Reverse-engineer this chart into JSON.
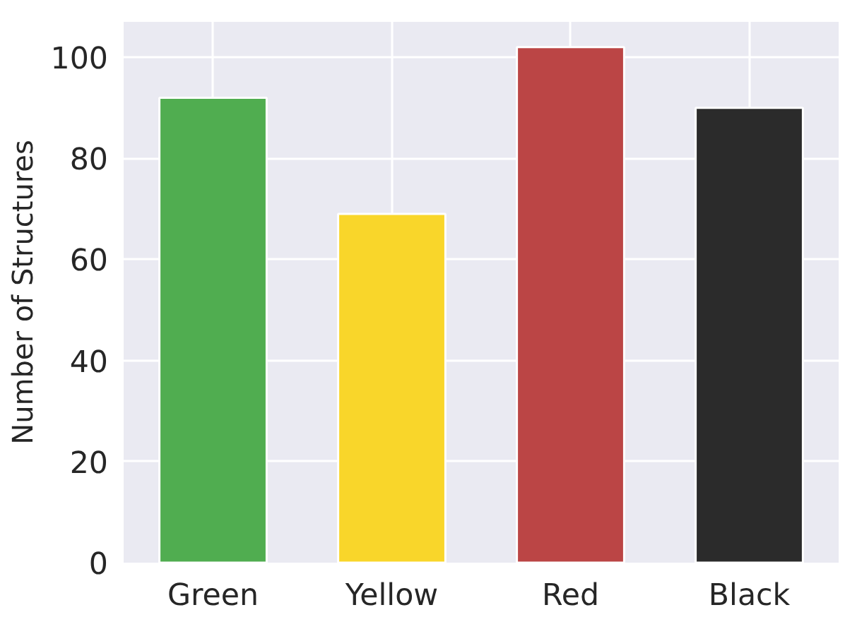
{
  "chart_data": {
    "type": "bar",
    "ylabel": "Number of Structures",
    "categories": [
      "Green",
      "Yellow",
      "Red",
      "Black"
    ],
    "values": [
      92,
      69,
      102,
      90
    ],
    "colors": [
      "#50ad50",
      "#f9d62a",
      "#bb4545",
      "#2b2b2b"
    ],
    "ylim": [
      0,
      107
    ],
    "yticks": [
      0,
      20,
      40,
      60,
      80,
      100
    ],
    "grid": true
  }
}
